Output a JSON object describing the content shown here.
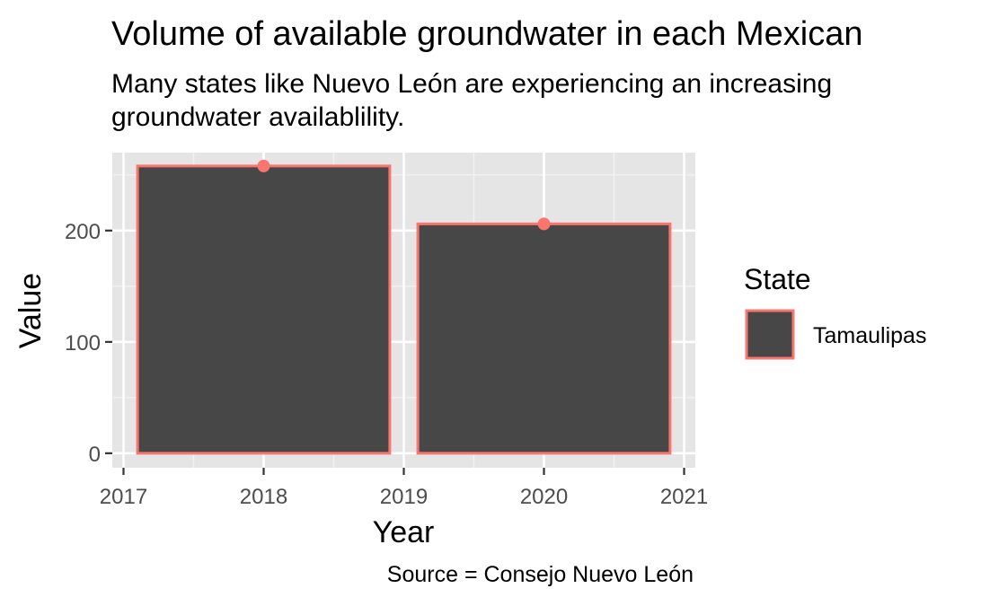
{
  "chart_data": {
    "type": "bar",
    "title": "Volume of available groundwater in each Mexican",
    "subtitle_lines": [
      "Many states like Nuevo León are experiencing an increasing",
      "groundwater availablility."
    ],
    "caption": "Source = Consejo Nuevo León",
    "xlabel": "Year",
    "ylabel": "Value",
    "x": [
      2018,
      2020
    ],
    "series": [
      {
        "name": "Tamaulipas",
        "values": [
          258,
          206
        ],
        "fill": "#474747",
        "outline": "#F8766D"
      }
    ],
    "xlim": [
      2016.92,
      2021.08
    ],
    "ylim": [
      -13,
      270
    ],
    "x_ticks": [
      2017,
      2018,
      2019,
      2020,
      2021
    ],
    "x_tick_labels": [
      "2017",
      "2018",
      "2019",
      "2020",
      "2021"
    ],
    "y_ticks": [
      0,
      100,
      200
    ],
    "y_tick_labels": [
      "0",
      "100",
      "200"
    ],
    "bar_width_years": 1.8,
    "grid": true,
    "legend": {
      "title": "State",
      "placement": "right",
      "items": [
        "Tamaulipas"
      ]
    },
    "colors": {
      "panel_background": "#E5E5E5",
      "grid_major": "#FFFFFF",
      "grid_minor": "#F2F2F2",
      "point": "#F8766D",
      "axis_text": "#4D4D4D",
      "tick": "#333333"
    }
  }
}
